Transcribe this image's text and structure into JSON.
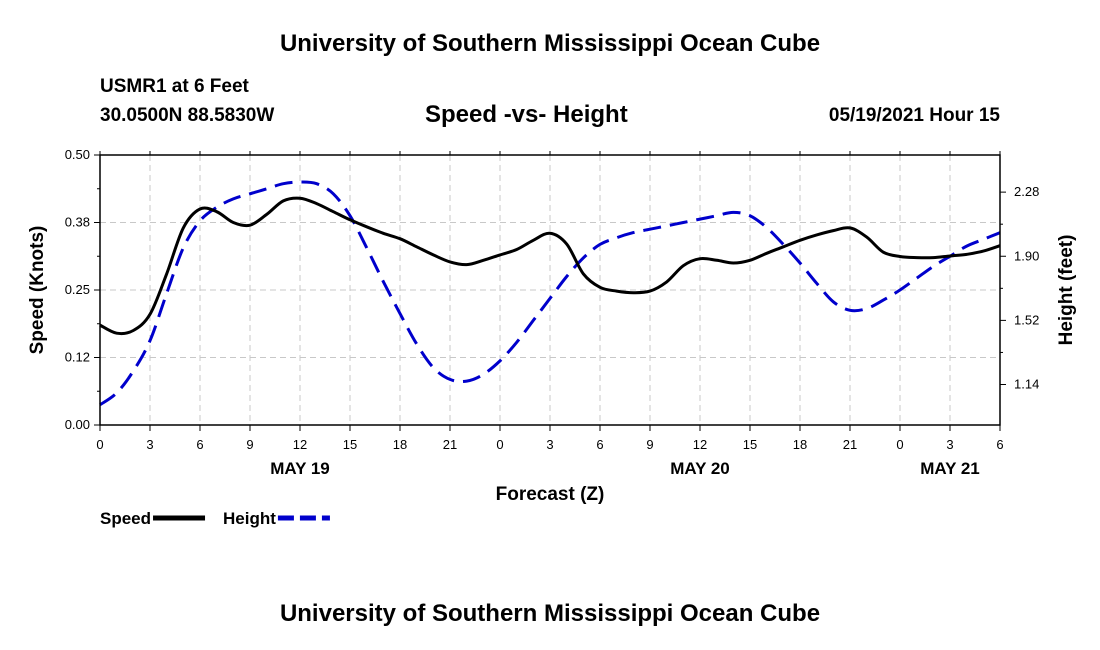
{
  "header": {
    "title_top": "University of Southern Mississippi Ocean Cube",
    "station": "USMR1 at 6 Feet",
    "coordinates": "30.0500N  88.5830W",
    "date_hour": "05/19/2021 Hour 15",
    "title_bottom": "University of Southern Mississippi Ocean Cube"
  },
  "chart_data": {
    "type": "line",
    "title": "Speed -vs- Height",
    "xlabel": "Forecast (Z)",
    "ylabel_left": "Speed (Knots)",
    "ylabel_right": "Height (feet)",
    "x_range_hours": [
      0,
      54
    ],
    "ylim_left": [
      0,
      0.5
    ],
    "ylim_right": [
      0.9,
      2.5
    ],
    "grid": true,
    "x_ticks": [
      {
        "h": 0,
        "label": "0"
      },
      {
        "h": 3,
        "label": "3"
      },
      {
        "h": 6,
        "label": "6"
      },
      {
        "h": 9,
        "label": "9"
      },
      {
        "h": 12,
        "label": "12"
      },
      {
        "h": 15,
        "label": "15"
      },
      {
        "h": 18,
        "label": "18"
      },
      {
        "h": 21,
        "label": "21"
      },
      {
        "h": 24,
        "label": "0"
      },
      {
        "h": 27,
        "label": "3"
      },
      {
        "h": 30,
        "label": "6"
      },
      {
        "h": 33,
        "label": "9"
      },
      {
        "h": 36,
        "label": "12"
      },
      {
        "h": 39,
        "label": "15"
      },
      {
        "h": 42,
        "label": "18"
      },
      {
        "h": 45,
        "label": "21"
      },
      {
        "h": 48,
        "label": "0"
      },
      {
        "h": 51,
        "label": "3"
      },
      {
        "h": 54,
        "label": "6"
      }
    ],
    "date_labels": [
      {
        "h": 12,
        "label": "MAY 19"
      },
      {
        "h": 36,
        "label": "MAY 20"
      },
      {
        "h": 51,
        "label": "MAY 21"
      }
    ],
    "y_ticks_left": [
      {
        "v": 0.0,
        "label": "0.00"
      },
      {
        "v": 0.125,
        "label": "0.12"
      },
      {
        "v": 0.25,
        "label": "0.25"
      },
      {
        "v": 0.375,
        "label": "0.38"
      },
      {
        "v": 0.5,
        "label": "0.50"
      }
    ],
    "y_ticks_right": [
      {
        "v": 1.14,
        "label": "1.14"
      },
      {
        "v": 1.52,
        "label": "1.52"
      },
      {
        "v": 1.9,
        "label": "1.90"
      },
      {
        "v": 2.28,
        "label": "2.28"
      }
    ],
    "series": [
      {
        "name": "Speed",
        "axis": "left",
        "color": "#000000",
        "dashed": false,
        "points": [
          [
            0,
            0.185
          ],
          [
            1,
            0.17
          ],
          [
            2,
            0.175
          ],
          [
            3,
            0.205
          ],
          [
            4,
            0.28
          ],
          [
            5,
            0.365
          ],
          [
            6,
            0.4
          ],
          [
            7,
            0.395
          ],
          [
            8,
            0.375
          ],
          [
            9,
            0.37
          ],
          [
            10,
            0.39
          ],
          [
            11,
            0.415
          ],
          [
            12,
            0.42
          ],
          [
            13,
            0.41
          ],
          [
            14,
            0.395
          ],
          [
            15,
            0.38
          ],
          [
            16,
            0.367
          ],
          [
            17,
            0.355
          ],
          [
            18,
            0.345
          ],
          [
            19,
            0.33
          ],
          [
            20,
            0.315
          ],
          [
            21,
            0.302
          ],
          [
            22,
            0.297
          ],
          [
            23,
            0.305
          ],
          [
            24,
            0.315
          ],
          [
            25,
            0.325
          ],
          [
            26,
            0.342
          ],
          [
            27,
            0.355
          ],
          [
            28,
            0.335
          ],
          [
            29,
            0.28
          ],
          [
            30,
            0.255
          ],
          [
            31,
            0.248
          ],
          [
            32,
            0.245
          ],
          [
            33,
            0.248
          ],
          [
            34,
            0.265
          ],
          [
            35,
            0.295
          ],
          [
            36,
            0.308
          ],
          [
            37,
            0.305
          ],
          [
            38,
            0.3
          ],
          [
            39,
            0.305
          ],
          [
            40,
            0.318
          ],
          [
            41,
            0.33
          ],
          [
            42,
            0.342
          ],
          [
            43,
            0.352
          ],
          [
            44,
            0.36
          ],
          [
            45,
            0.365
          ],
          [
            46,
            0.348
          ],
          [
            47,
            0.32
          ],
          [
            48,
            0.312
          ],
          [
            49,
            0.31
          ],
          [
            50,
            0.31
          ],
          [
            51,
            0.313
          ],
          [
            52,
            0.316
          ],
          [
            53,
            0.322
          ],
          [
            54,
            0.332
          ]
        ]
      },
      {
        "name": "Height",
        "axis": "right",
        "color": "#0000cc",
        "dashed": true,
        "points": [
          [
            0,
            1.02
          ],
          [
            1,
            1.09
          ],
          [
            2,
            1.22
          ],
          [
            3,
            1.4
          ],
          [
            4,
            1.68
          ],
          [
            5,
            1.95
          ],
          [
            6,
            2.11
          ],
          [
            7,
            2.19
          ],
          [
            8,
            2.24
          ],
          [
            9,
            2.27
          ],
          [
            10,
            2.3
          ],
          [
            11,
            2.33
          ],
          [
            12,
            2.34
          ],
          [
            13,
            2.33
          ],
          [
            14,
            2.27
          ],
          [
            15,
            2.14
          ],
          [
            16,
            1.95
          ],
          [
            17,
            1.75
          ],
          [
            18,
            1.56
          ],
          [
            19,
            1.38
          ],
          [
            20,
            1.24
          ],
          [
            21,
            1.17
          ],
          [
            22,
            1.16
          ],
          [
            23,
            1.2
          ],
          [
            24,
            1.28
          ],
          [
            25,
            1.39
          ],
          [
            26,
            1.52
          ],
          [
            27,
            1.65
          ],
          [
            28,
            1.78
          ],
          [
            29,
            1.89
          ],
          [
            30,
            1.97
          ],
          [
            31,
            2.01
          ],
          [
            32,
            2.04
          ],
          [
            33,
            2.06
          ],
          [
            34,
            2.08
          ],
          [
            35,
            2.1
          ],
          [
            36,
            2.12
          ],
          [
            37,
            2.14
          ],
          [
            38,
            2.16
          ],
          [
            39,
            2.14
          ],
          [
            40,
            2.07
          ],
          [
            41,
            1.97
          ],
          [
            42,
            1.86
          ],
          [
            43,
            1.74
          ],
          [
            44,
            1.63
          ],
          [
            45,
            1.58
          ],
          [
            46,
            1.59
          ],
          [
            47,
            1.64
          ],
          [
            48,
            1.7
          ],
          [
            49,
            1.77
          ],
          [
            50,
            1.84
          ],
          [
            51,
            1.9
          ],
          [
            52,
            1.96
          ],
          [
            53,
            2.0
          ],
          [
            54,
            2.04
          ]
        ]
      }
    ],
    "legend": {
      "placement": "bottom-left",
      "items": [
        {
          "label": "Speed",
          "color": "#000000",
          "dashed": false
        },
        {
          "label": "Height",
          "color": "#0000cc",
          "dashed": true
        }
      ]
    }
  }
}
